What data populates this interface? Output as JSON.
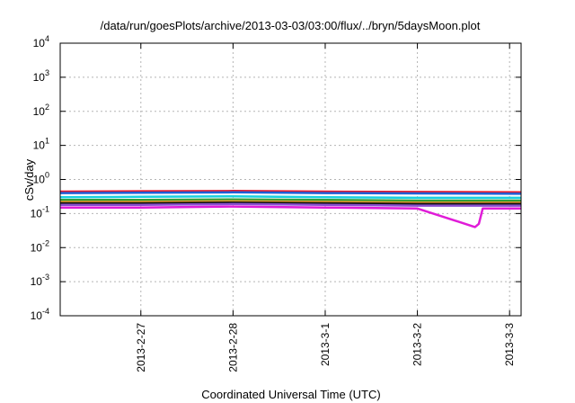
{
  "chart_data": {
    "type": "line",
    "title": "/data/run/goesPlots/archive/2013-03-03/03:00/flux/../bryn/5daysMoon.plot",
    "xlabel": "Coordinated Universal Time (UTC)",
    "ylabel": "cSv/day",
    "yscale": "log",
    "ylim": [
      0.0001,
      10000
    ],
    "xlim": [
      "2013-02-26T03:00",
      "2013-03-03T03:00"
    ],
    "grid": true,
    "y_ticks": [
      {
        "base": "10",
        "exp": "-4",
        "value": 0.0001
      },
      {
        "base": "10",
        "exp": "-3",
        "value": 0.001
      },
      {
        "base": "10",
        "exp": "-2",
        "value": 0.01
      },
      {
        "base": "10",
        "exp": "-1",
        "value": 0.1
      },
      {
        "base": "10",
        "exp": "0",
        "value": 1
      },
      {
        "base": "10",
        "exp": "1",
        "value": 10
      },
      {
        "base": "10",
        "exp": "2",
        "value": 100
      },
      {
        "base": "10",
        "exp": "3",
        "value": 1000
      },
      {
        "base": "10",
        "exp": "4",
        "value": 10000
      }
    ],
    "x_ticks": [
      {
        "label": "2013-2-27",
        "value": "2013-02-27T00:00"
      },
      {
        "label": "2013-2-28",
        "value": "2013-02-28T00:00"
      },
      {
        "label": "2013-3-1",
        "value": "2013-03-01T00:00"
      },
      {
        "label": "2013-3-2",
        "value": "2013-03-02T00:00"
      },
      {
        "label": "2013-3-3",
        "value": "2013-03-03T00:00"
      }
    ],
    "series": [
      {
        "color": "#e8192c",
        "x": [
          "2013-02-26T03:00",
          "2013-02-27T00:00",
          "2013-02-28T00:00",
          "2013-03-01T00:00",
          "2013-03-02T00:00",
          "2013-03-03T03:00"
        ],
        "values": [
          0.44,
          0.45,
          0.46,
          0.44,
          0.43,
          0.42
        ]
      },
      {
        "color": "#1f5fd6",
        "x": [
          "2013-02-26T03:00",
          "2013-02-27T00:00",
          "2013-02-28T00:00",
          "2013-03-01T00:00",
          "2013-03-02T00:00",
          "2013-03-03T03:00"
        ],
        "values": [
          0.4,
          0.41,
          0.42,
          0.4,
          0.39,
          0.38
        ]
      },
      {
        "color": "#19d0e0",
        "x": [
          "2013-02-26T03:00",
          "2013-02-27T00:00",
          "2013-02-28T00:00",
          "2013-03-01T00:00",
          "2013-03-02T00:00",
          "2013-03-03T03:00"
        ],
        "values": [
          0.3,
          0.31,
          0.32,
          0.3,
          0.29,
          0.29
        ]
      },
      {
        "color": "#2e9e3a",
        "x": [
          "2013-02-26T03:00",
          "2013-02-27T00:00",
          "2013-02-28T00:00",
          "2013-03-01T00:00",
          "2013-03-02T00:00",
          "2013-03-03T03:00"
        ],
        "values": [
          0.25,
          0.25,
          0.26,
          0.25,
          0.24,
          0.24
        ]
      },
      {
        "color": "#e39b2a",
        "x": [
          "2013-02-26T03:00",
          "2013-02-27T00:00",
          "2013-02-28T00:00",
          "2013-03-01T00:00",
          "2013-03-02T00:00",
          "2013-03-03T03:00"
        ],
        "values": [
          0.22,
          0.22,
          0.23,
          0.22,
          0.21,
          0.21
        ]
      },
      {
        "color": "#111111",
        "x": [
          "2013-02-26T03:00",
          "2013-02-27T00:00",
          "2013-02-28T00:00",
          "2013-03-01T00:00",
          "2013-03-02T00:00",
          "2013-03-03T03:00"
        ],
        "values": [
          0.2,
          0.2,
          0.21,
          0.2,
          0.19,
          0.19
        ]
      },
      {
        "color": "#8a4fd0",
        "x": [
          "2013-02-26T03:00",
          "2013-02-27T00:00",
          "2013-02-28T00:00",
          "2013-03-01T00:00",
          "2013-03-02T00:00",
          "2013-03-03T03:00"
        ],
        "values": [
          0.18,
          0.18,
          0.19,
          0.18,
          0.17,
          0.17
        ]
      },
      {
        "color": "#e01cd8",
        "x": [
          "2013-02-26T03:00",
          "2013-02-27T00:00",
          "2013-02-28T00:00",
          "2013-03-01T00:00",
          "2013-03-02T00:00",
          "2013-03-02T15:00",
          "2013-03-02T16:00",
          "2013-03-02T17:00",
          "2013-03-03T03:00"
        ],
        "values": [
          0.15,
          0.15,
          0.16,
          0.15,
          0.14,
          0.04,
          0.05,
          0.14,
          0.14
        ]
      }
    ]
  }
}
